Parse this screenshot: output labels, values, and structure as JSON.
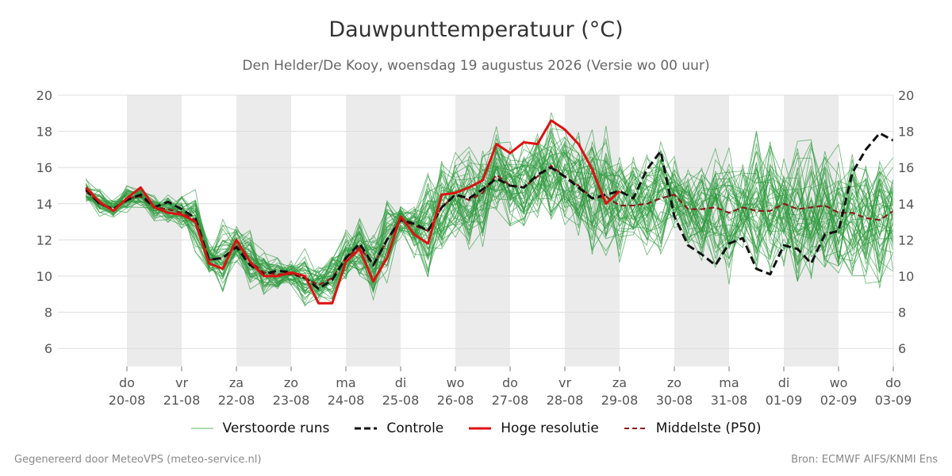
{
  "chart_data": {
    "type": "line",
    "title": "Dauwpunttemperatuur (°C)",
    "subtitle": "Den Helder/De Kooy, woensdag 19 augustus 2026 (Versie wo 00 uur)",
    "ylim": [
      5,
      20
    ],
    "yticks": [
      6,
      8,
      10,
      12,
      14,
      16,
      18,
      20
    ],
    "grid": true,
    "x_axis": {
      "range": [
        -0.75,
        14
      ],
      "ticks": [
        {
          "pos": 0,
          "day": "do",
          "date": "20-08"
        },
        {
          "pos": 1,
          "day": "vr",
          "date": "21-08"
        },
        {
          "pos": 2,
          "day": "za",
          "date": "22-08"
        },
        {
          "pos": 3,
          "day": "zo",
          "date": "23-08"
        },
        {
          "pos": 4,
          "day": "ma",
          "date": "24-08"
        },
        {
          "pos": 5,
          "day": "di",
          "date": "25-08"
        },
        {
          "pos": 6,
          "day": "wo",
          "date": "26-08"
        },
        {
          "pos": 7,
          "day": "do",
          "date": "27-08"
        },
        {
          "pos": 8,
          "day": "vr",
          "date": "28-08"
        },
        {
          "pos": 9,
          "day": "za",
          "date": "29-08"
        },
        {
          "pos": 10,
          "day": "zo",
          "date": "30-08"
        },
        {
          "pos": 11,
          "day": "ma",
          "date": "31-08"
        },
        {
          "pos": 12,
          "day": "di",
          "date": "01-09"
        },
        {
          "pos": 13,
          "day": "wo",
          "date": "02-09"
        },
        {
          "pos": 14,
          "day": "do",
          "date": "03-09"
        }
      ],
      "shaded_days": [
        [
          0,
          1
        ],
        [
          2,
          3
        ],
        [
          4,
          5
        ],
        [
          6,
          7
        ],
        [
          8,
          9
        ],
        [
          10,
          11
        ],
        [
          12,
          13
        ]
      ]
    },
    "series": [
      {
        "name": "Controle",
        "color": "#111111",
        "style": "dashed",
        "x": [
          -0.75,
          -0.5,
          -0.25,
          0,
          0.25,
          0.5,
          0.75,
          1,
          1.25,
          1.5,
          1.75,
          2,
          2.25,
          2.5,
          2.75,
          3,
          3.25,
          3.5,
          3.75,
          4,
          4.25,
          4.5,
          4.75,
          5,
          5.25,
          5.5,
          5.75,
          6,
          6.25,
          6.5,
          6.75,
          7,
          7.25,
          7.5,
          7.75,
          8,
          8.25,
          8.5,
          8.75,
          9,
          9.25,
          9.5,
          9.75,
          10,
          10.25,
          10.5,
          10.75,
          11,
          11.25,
          11.5,
          11.75,
          12,
          12.25,
          12.5,
          12.75,
          13,
          13.25,
          13.5,
          13.75,
          14
        ],
        "values": [
          14.8,
          14.0,
          13.7,
          14.2,
          14.5,
          13.8,
          14.1,
          13.7,
          13.2,
          10.9,
          11.0,
          11.6,
          10.6,
          10.1,
          10.3,
          10.2,
          9.9,
          9.3,
          9.8,
          11.0,
          11.8,
          10.6,
          12.0,
          13.1,
          12.9,
          12.5,
          13.8,
          14.5,
          14.3,
          14.8,
          15.4,
          15.0,
          14.9,
          15.6,
          16.0,
          15.5,
          14.9,
          14.3,
          14.5,
          14.7,
          14.3,
          15.9,
          16.9,
          13.3,
          11.7,
          11.2,
          10.6,
          11.8,
          12.1,
          10.4,
          10.1,
          11.7,
          11.5,
          10.7,
          12.3,
          12.5,
          15.7,
          17.0,
          17.9,
          17.5
        ]
      },
      {
        "name": "Hoge resolutie",
        "color": "#dd1111",
        "style": "solid",
        "x": [
          -0.75,
          -0.5,
          -0.25,
          0,
          0.25,
          0.5,
          0.75,
          1,
          1.25,
          1.5,
          1.75,
          2,
          2.25,
          2.5,
          2.75,
          3,
          3.25,
          3.5,
          3.75,
          4,
          4.25,
          4.5,
          4.75,
          5,
          5.25,
          5.5,
          5.75,
          6,
          6.25,
          6.5,
          6.75,
          7,
          7.25,
          7.5,
          7.75,
          8,
          8.25,
          8.5,
          8.75,
          9
        ],
        "values": [
          14.9,
          14.1,
          13.6,
          14.3,
          14.9,
          13.8,
          13.5,
          13.4,
          13.0,
          10.7,
          10.4,
          12.0,
          10.8,
          10.0,
          10.0,
          10.2,
          10.0,
          8.5,
          8.5,
          10.8,
          11.5,
          9.7,
          11.0,
          13.3,
          12.3,
          11.8,
          14.5,
          14.6,
          14.9,
          15.3,
          17.3,
          16.8,
          17.4,
          17.3,
          18.6,
          18.1,
          17.3,
          15.9,
          14.0,
          14.7
        ]
      },
      {
        "name": "Middelste (P50)",
        "color": "#8b1a1a",
        "style": "dashed",
        "x": [
          -0.75,
          -0.5,
          -0.25,
          0,
          0.25,
          0.5,
          0.75,
          1,
          1.25,
          1.5,
          1.75,
          2,
          2.25,
          2.5,
          2.75,
          3,
          3.25,
          3.5,
          3.75,
          4,
          4.25,
          4.5,
          4.75,
          5,
          5.25,
          5.5,
          5.75,
          6,
          6.25,
          6.5,
          6.75,
          7,
          7.25,
          7.5,
          7.75,
          8,
          8.25,
          8.5,
          8.75,
          9,
          9.25,
          9.5,
          9.75,
          10,
          10.25,
          10.5,
          10.75,
          11,
          11.25,
          11.5,
          11.75,
          12,
          12.25,
          12.5,
          12.75,
          13,
          13.25,
          13.5,
          13.75,
          14
        ],
        "values": [
          14.7,
          14.0,
          13.7,
          14.3,
          14.4,
          13.8,
          13.7,
          13.5,
          13.1,
          10.9,
          11.0,
          11.7,
          10.8,
          10.2,
          10.1,
          10.1,
          9.9,
          9.5,
          9.9,
          11.0,
          11.6,
          10.6,
          12.0,
          13.1,
          12.8,
          12.5,
          13.8,
          14.5,
          14.2,
          14.6,
          15.6,
          15.0,
          14.9,
          15.5,
          16.1,
          15.5,
          15.0,
          14.3,
          14.4,
          13.9,
          13.9,
          14.0,
          14.3,
          14.5,
          13.7,
          13.7,
          13.8,
          13.5,
          13.8,
          13.6,
          13.6,
          14.0,
          13.7,
          13.8,
          13.9,
          13.5,
          13.5,
          13.2,
          13.1,
          13.6
        ]
      },
      {
        "name": "Verstoorde runs",
        "color": "#2e9a3e",
        "style": "thin",
        "members": 50,
        "x": [
          -0.75,
          -0.5,
          -0.25,
          0,
          0.25,
          0.5,
          0.75,
          1,
          1.25,
          1.5,
          1.75,
          2,
          2.25,
          2.5,
          2.75,
          3,
          3.25,
          3.5,
          3.75,
          4,
          4.25,
          4.5,
          4.75,
          5,
          5.25,
          5.5,
          5.75,
          6,
          6.25,
          6.5,
          6.75,
          7,
          7.25,
          7.5,
          7.75,
          8,
          8.25,
          8.5,
          8.75,
          9,
          9.25,
          9.5,
          9.75,
          10,
          10.25,
          10.5,
          10.75,
          11,
          11.25,
          11.5,
          11.75,
          12,
          12.25,
          12.5,
          12.75,
          13,
          13.25,
          13.5,
          13.75,
          14
        ],
        "min_values": [
          14.1,
          13.3,
          12.8,
          13.5,
          13.8,
          12.2,
          12.8,
          12.5,
          11.0,
          9.8,
          8.5,
          10.0,
          9.2,
          9.0,
          9.0,
          9.5,
          8.2,
          7.8,
          8.2,
          9.5,
          8.5,
          7.0,
          8.0,
          10.5,
          10.5,
          8.6,
          11.0,
          12.0,
          10.6,
          11.5,
          12.0,
          12.5,
          11.8,
          10.2,
          11.0,
          10.5,
          11.0,
          10.1,
          8.0,
          10.5,
          10.7,
          9.2,
          9.5,
          8.1,
          10.0,
          7.7,
          8.3,
          6.9,
          9.0,
          7.8,
          9.2,
          7.9,
          9.0,
          8.4,
          10.0,
          7.9,
          8.1,
          9.3,
          8.5,
          9.1
        ],
        "max_values": [
          15.8,
          14.8,
          14.2,
          15.0,
          15.7,
          14.6,
          14.5,
          14.4,
          14.9,
          14.0,
          13.2,
          13.0,
          12.9,
          11.8,
          11.5,
          11.2,
          12.9,
          10.5,
          11.5,
          13.1,
          13.6,
          12.8,
          14.7,
          14.0,
          14.5,
          17.6,
          18.2,
          17.1,
          18.6,
          18.0,
          18.3,
          18.1,
          19.0,
          18.4,
          19.5,
          18.5,
          18.4,
          18.7,
          18.5,
          17.0,
          17.3,
          17.2,
          17.9,
          16.7,
          16.5,
          16.9,
          17.2,
          17.7,
          16.3,
          18.5,
          18.8,
          17.6,
          18.9,
          18.5,
          18.0,
          17.8,
          17.6,
          17.0,
          17.5,
          17.2
        ]
      }
    ]
  },
  "legend": {
    "items": [
      {
        "label": "Verstoorde runs"
      },
      {
        "label": "Controle"
      },
      {
        "label": "Hoge resolutie"
      },
      {
        "label": "Middelste (P50)"
      }
    ]
  },
  "footer": {
    "left": "Gegenereerd door MeteoVPS (meteo-service.nl)",
    "right": "Bron: ECMWF AIFS/KNMI Ens"
  }
}
